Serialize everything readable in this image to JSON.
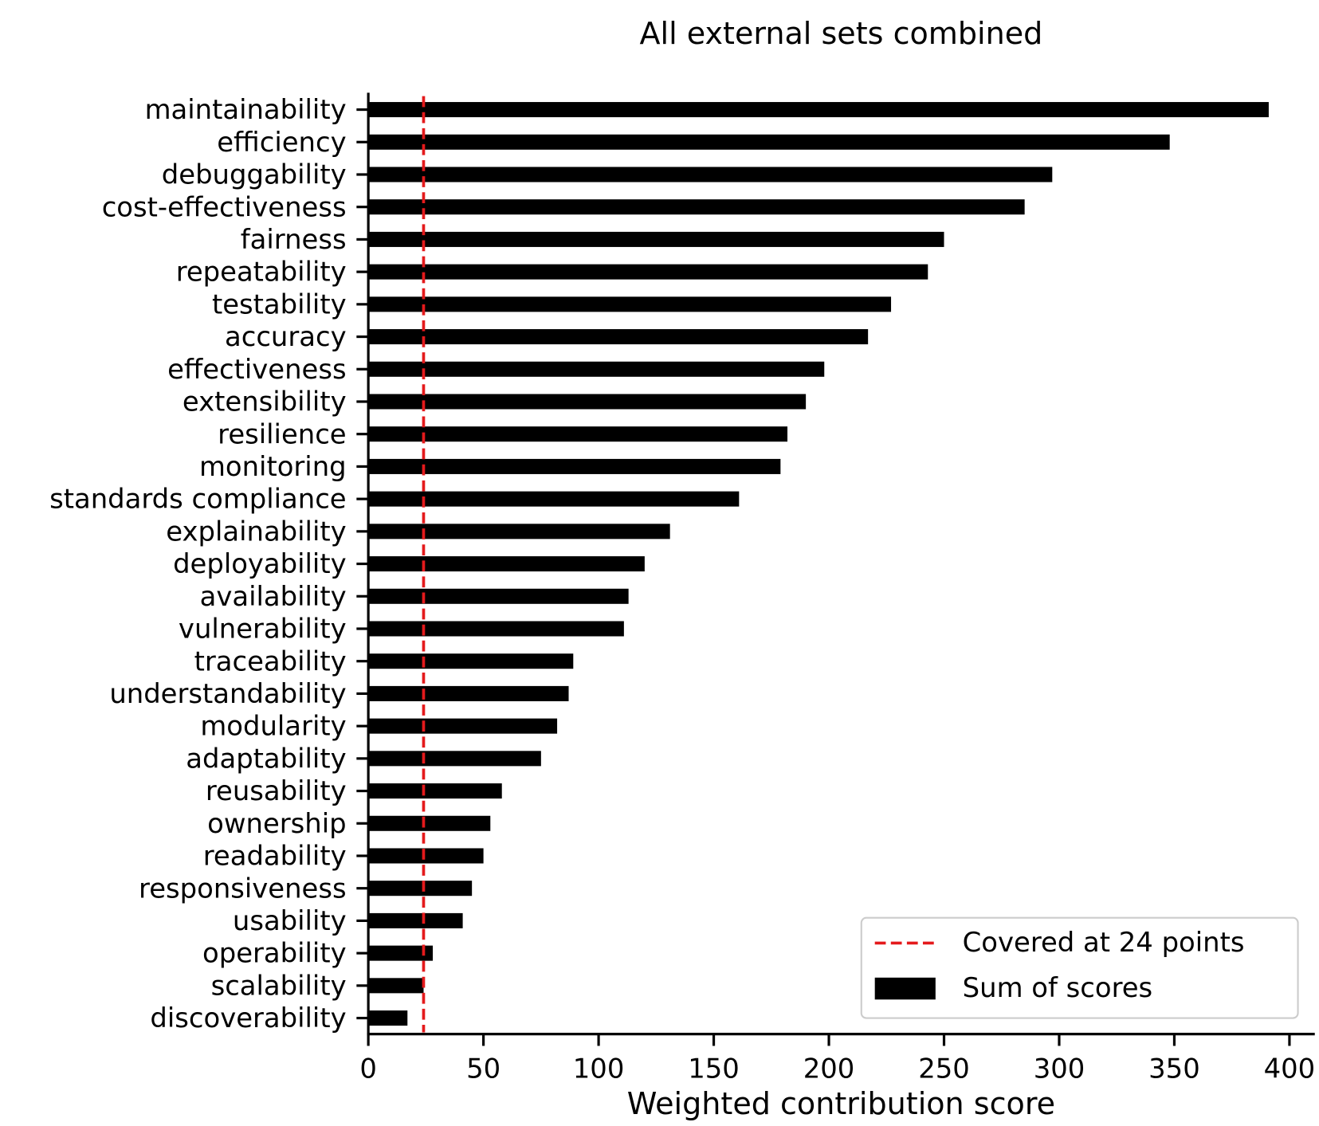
{
  "chart_data": {
    "type": "barh",
    "title": "All external sets combined",
    "x_label": "Weighted contribution score",
    "categories": [
      "maintainability",
      "efficiency",
      "debuggability",
      "cost-effectiveness",
      "fairness",
      "repeatability",
      "testability",
      "accuracy",
      "effectiveness",
      "extensibility",
      "resilience",
      "monitoring",
      "standards compliance",
      "explainability",
      "deployability",
      "availability",
      "vulnerability",
      "traceability",
      "understandability",
      "modularity",
      "adaptability",
      "reusability",
      "ownership",
      "readability",
      "responsiveness",
      "usability",
      "operability",
      "scalability",
      "discoverability"
    ],
    "series": [
      {
        "name": "Sum of scores",
        "color": "#000000",
        "values": [
          391,
          348,
          297,
          285,
          250,
          243,
          227,
          217,
          198,
          190,
          182,
          179,
          161,
          131,
          120,
          113,
          111,
          89,
          87,
          82,
          75,
          58,
          53,
          50,
          45,
          41,
          28,
          24,
          17
        ]
      }
    ],
    "reference_line": {
      "name": "Covered at 24 points",
      "value": 24,
      "color": "#e41a1c",
      "style": "dashed"
    },
    "xlim": [
      0,
      411
    ],
    "xticks": [
      0,
      50,
      100,
      150,
      200,
      250,
      300,
      350,
      400
    ],
    "legend": "lower right"
  }
}
